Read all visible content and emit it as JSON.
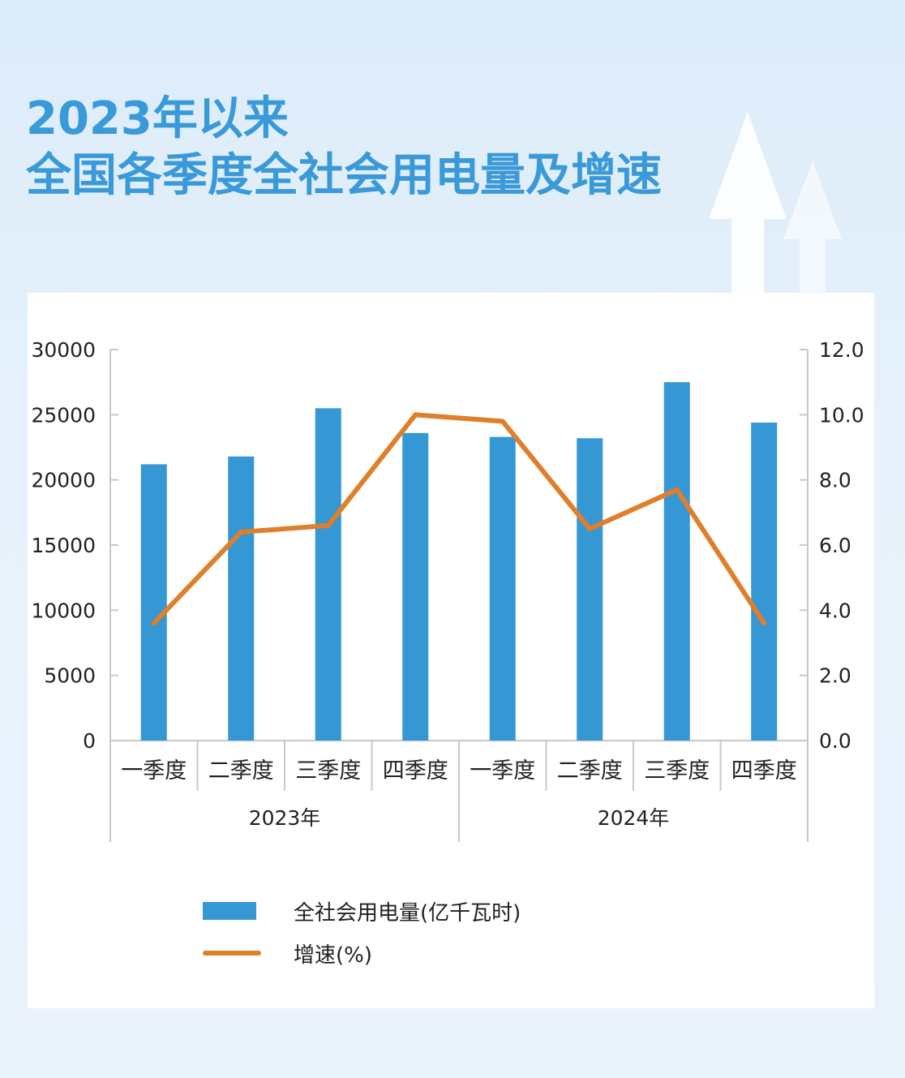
{
  "title": {
    "line1": "2023年以来",
    "line2": "全国各季度全社会用电量及增速"
  },
  "colors": {
    "bar": "#3597d4",
    "line": "#e07f2b",
    "title": "#3a9ad9"
  },
  "chart_data": {
    "type": "bar+line",
    "title": "2023年以来全国各季度全社会用电量及增速",
    "categories": [
      "一季度",
      "二季度",
      "三季度",
      "四季度",
      "一季度",
      "二季度",
      "三季度",
      "四季度"
    ],
    "groups": [
      {
        "label": "2023年",
        "categories": 4
      },
      {
        "label": "2024年",
        "categories": 4
      }
    ],
    "series": [
      {
        "name": "全社会用电量(亿千瓦时)",
        "type": "bar",
        "axis": "left",
        "values": [
          21200,
          21800,
          25500,
          23600,
          23300,
          23200,
          27500,
          24400
        ]
      },
      {
        "name": "增速(%)",
        "type": "line",
        "axis": "right",
        "values": [
          3.6,
          6.4,
          6.6,
          10.0,
          9.8,
          6.5,
          7.7,
          3.6
        ]
      }
    ],
    "y_left": {
      "min": 0,
      "max": 30000,
      "ticks": [
        "0",
        "5000",
        "10000",
        "15000",
        "20000",
        "25000",
        "30000"
      ]
    },
    "y_right": {
      "min": 0,
      "max": 12,
      "ticks": [
        "0.0",
        "2.0",
        "4.0",
        "6.0",
        "8.0",
        "10.0",
        "12.0"
      ]
    },
    "legend": [
      {
        "label": "全社会用电量(亿千瓦时)",
        "kind": "bar"
      },
      {
        "label": "增速(%)",
        "kind": "line"
      }
    ],
    "legend_position": "bottom"
  }
}
